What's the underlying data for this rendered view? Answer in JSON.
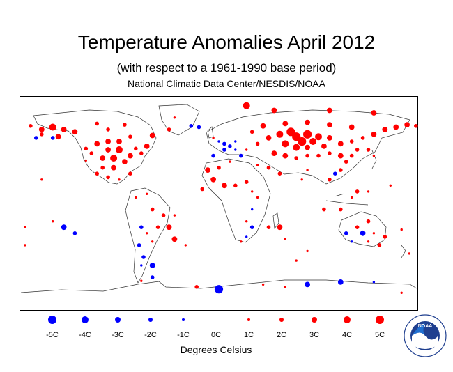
{
  "header": {
    "title": "Temperature Anomalies April 2012",
    "subtitle": "(with respect to a 1961-1990 base period)",
    "source": "National Climatic Data Center/NESDIS/NOAA"
  },
  "legend": {
    "items": [
      {
        "label": "-5C",
        "value": -5
      },
      {
        "label": "-4C",
        "value": -4
      },
      {
        "label": "-3C",
        "value": -3
      },
      {
        "label": "-2C",
        "value": -2
      },
      {
        "label": "-1C",
        "value": -1
      },
      {
        "label": "0C",
        "value": 0
      },
      {
        "label": "1C",
        "value": 1
      },
      {
        "label": "2C",
        "value": 2
      },
      {
        "label": "3C",
        "value": 3
      },
      {
        "label": "4C",
        "value": 4
      },
      {
        "label": "5C",
        "value": 5
      }
    ],
    "units": "Degrees Celsius",
    "warm_color": "#ff0000",
    "cold_color": "#0000ff"
  },
  "logo": {
    "text": "NOAA",
    "ring_text": "NATIONAL OCEANIC AND ATMOSPHERIC ADMINISTRATION · U.S. DEPARTMENT OF COMMERCE"
  },
  "map_data": {
    "projection": "equirectangular",
    "lon_range": [
      -180,
      180
    ],
    "lat_range": [
      -90,
      90
    ],
    "anomalies": [
      {
        "lon": 25,
        "lat": 82,
        "value": 4
      },
      {
        "lon": 50,
        "lat": 78,
        "value": 3
      },
      {
        "lon": 100,
        "lat": 78,
        "value": 3
      },
      {
        "lon": 140,
        "lat": 76,
        "value": 3
      },
      {
        "lon": -170,
        "lat": 65,
        "value": 2
      },
      {
        "lon": -160,
        "lat": 62,
        "value": 3
      },
      {
        "lon": -150,
        "lat": 64,
        "value": 4
      },
      {
        "lon": -140,
        "lat": 62,
        "value": 3
      },
      {
        "lon": -130,
        "lat": 60,
        "value": 3
      },
      {
        "lon": -160,
        "lat": 58,
        "value": 2
      },
      {
        "lon": -145,
        "lat": 56,
        "value": 3
      },
      {
        "lon": -165,
        "lat": 55,
        "value": -2
      },
      {
        "lon": -150,
        "lat": 55,
        "value": -2
      },
      {
        "lon": -110,
        "lat": 67,
        "value": 2
      },
      {
        "lon": -100,
        "lat": 62,
        "value": 2
      },
      {
        "lon": -85,
        "lat": 66,
        "value": 2
      },
      {
        "lon": -80,
        "lat": 56,
        "value": 2
      },
      {
        "lon": -60,
        "lat": 57,
        "value": 3
      },
      {
        "lon": -45,
        "lat": 62,
        "value": 2
      },
      {
        "lon": -25,
        "lat": 65,
        "value": -2
      },
      {
        "lon": -18,
        "lat": 64,
        "value": -2
      },
      {
        "lon": -40,
        "lat": 72,
        "value": 1
      },
      {
        "lon": -65,
        "lat": 48,
        "value": 3
      },
      {
        "lon": -75,
        "lat": 46,
        "value": 2
      },
      {
        "lon": -70,
        "lat": 42,
        "value": 2
      },
      {
        "lon": -80,
        "lat": 40,
        "value": 3
      },
      {
        "lon": -90,
        "lat": 45,
        "value": 4
      },
      {
        "lon": -100,
        "lat": 45,
        "value": 3
      },
      {
        "lon": -95,
        "lat": 38,
        "value": 4
      },
      {
        "lon": -105,
        "lat": 38,
        "value": 3
      },
      {
        "lon": -115,
        "lat": 42,
        "value": 2
      },
      {
        "lon": -120,
        "lat": 46,
        "value": 2
      },
      {
        "lon": -110,
        "lat": 50,
        "value": 3
      },
      {
        "lon": -100,
        "lat": 52,
        "value": 3
      },
      {
        "lon": -90,
        "lat": 52,
        "value": 3
      },
      {
        "lon": -85,
        "lat": 35,
        "value": 3
      },
      {
        "lon": -95,
        "lat": 30,
        "value": 3
      },
      {
        "lon": -105,
        "lat": 30,
        "value": 2
      },
      {
        "lon": -110,
        "lat": 25,
        "value": 2
      },
      {
        "lon": -100,
        "lat": 22,
        "value": 2
      },
      {
        "lon": -90,
        "lat": 20,
        "value": 1
      },
      {
        "lon": -80,
        "lat": 25,
        "value": 2
      },
      {
        "lon": -120,
        "lat": 36,
        "value": 1
      },
      {
        "lon": -75,
        "lat": 5,
        "value": 1
      },
      {
        "lon": -65,
        "lat": 8,
        "value": 1
      },
      {
        "lon": -60,
        "lat": -5,
        "value": 2
      },
      {
        "lon": -50,
        "lat": -10,
        "value": 2
      },
      {
        "lon": -55,
        "lat": -20,
        "value": 2
      },
      {
        "lon": -45,
        "lat": -20,
        "value": 3
      },
      {
        "lon": -40,
        "lat": -10,
        "value": 1
      },
      {
        "lon": -65,
        "lat": -25,
        "value": 1
      },
      {
        "lon": -60,
        "lat": -32,
        "value": 1
      },
      {
        "lon": -70,
        "lat": -20,
        "value": -2
      },
      {
        "lon": -72,
        "lat": -35,
        "value": -2
      },
      {
        "lon": -68,
        "lat": -45,
        "value": -2
      },
      {
        "lon": -70,
        "lat": -52,
        "value": -1
      },
      {
        "lon": -60,
        "lat": -52,
        "value": -3
      },
      {
        "lon": -40,
        "lat": -30,
        "value": 3
      },
      {
        "lon": -30,
        "lat": -35,
        "value": 1
      },
      {
        "lon": -140,
        "lat": -20,
        "value": -3
      },
      {
        "lon": -130,
        "lat": -25,
        "value": -2
      },
      {
        "lon": -150,
        "lat": -15,
        "value": 1
      },
      {
        "lon": -175,
        "lat": -20,
        "value": 1
      },
      {
        "lon": -175,
        "lat": -35,
        "value": 1
      },
      {
        "lon": -160,
        "lat": 20,
        "value": 1
      },
      {
        "lon": -5,
        "lat": 55,
        "value": 1
      },
      {
        "lon": 0,
        "lat": 52,
        "value": -1
      },
      {
        "lon": 5,
        "lat": 50,
        "value": -2
      },
      {
        "lon": 10,
        "lat": 48,
        "value": -2
      },
      {
        "lon": 15,
        "lat": 52,
        "value": -1
      },
      {
        "lon": -5,
        "lat": 40,
        "value": -2
      },
      {
        "lon": 5,
        "lat": 45,
        "value": -2
      },
      {
        "lon": 15,
        "lat": 45,
        "value": -1
      },
      {
        "lon": 20,
        "lat": 40,
        "value": -2
      },
      {
        "lon": 25,
        "lat": 45,
        "value": 1
      },
      {
        "lon": 35,
        "lat": 50,
        "value": 2
      },
      {
        "lon": 45,
        "lat": 55,
        "value": 3
      },
      {
        "lon": 55,
        "lat": 58,
        "value": 4
      },
      {
        "lon": 65,
        "lat": 60,
        "value": 5
      },
      {
        "lon": 70,
        "lat": 56,
        "value": 5
      },
      {
        "lon": 80,
        "lat": 58,
        "value": 5
      },
      {
        "lon": 75,
        "lat": 52,
        "value": 5
      },
      {
        "lon": 85,
        "lat": 52,
        "value": 4
      },
      {
        "lon": 90,
        "lat": 56,
        "value": 4
      },
      {
        "lon": 100,
        "lat": 55,
        "value": 3
      },
      {
        "lon": 60,
        "lat": 50,
        "value": 4
      },
      {
        "lon": 70,
        "lat": 47,
        "value": 4
      },
      {
        "lon": 80,
        "lat": 47,
        "value": 3
      },
      {
        "lon": 95,
        "lat": 48,
        "value": 3
      },
      {
        "lon": 110,
        "lat": 50,
        "value": 3
      },
      {
        "lon": 120,
        "lat": 52,
        "value": 2
      },
      {
        "lon": 130,
        "lat": 55,
        "value": 2
      },
      {
        "lon": 140,
        "lat": 58,
        "value": 3
      },
      {
        "lon": 150,
        "lat": 62,
        "value": 3
      },
      {
        "lon": 160,
        "lat": 64,
        "value": 3
      },
      {
        "lon": 170,
        "lat": 66,
        "value": 3
      },
      {
        "lon": 178,
        "lat": 65,
        "value": 2
      },
      {
        "lon": 120,
        "lat": 64,
        "value": 3
      },
      {
        "lon": 100,
        "lat": 66,
        "value": 3
      },
      {
        "lon": 80,
        "lat": 68,
        "value": 3
      },
      {
        "lon": 60,
        "lat": 67,
        "value": 3
      },
      {
        "lon": 40,
        "lat": 65,
        "value": 3
      },
      {
        "lon": 30,
        "lat": 60,
        "value": 2
      },
      {
        "lon": 50,
        "lat": 42,
        "value": 3
      },
      {
        "lon": 60,
        "lat": 40,
        "value": 3
      },
      {
        "lon": 70,
        "lat": 38,
        "value": 2
      },
      {
        "lon": 80,
        "lat": 40,
        "value": 2
      },
      {
        "lon": 90,
        "lat": 40,
        "value": 2
      },
      {
        "lon": 100,
        "lat": 42,
        "value": 2
      },
      {
        "lon": 110,
        "lat": 40,
        "value": 3
      },
      {
        "lon": 115,
        "lat": 35,
        "value": 2
      },
      {
        "lon": 120,
        "lat": 40,
        "value": 2
      },
      {
        "lon": 125,
        "lat": 45,
        "value": 2
      },
      {
        "lon": 135,
        "lat": 45,
        "value": 2
      },
      {
        "lon": 140,
        "lat": 40,
        "value": 1
      },
      {
        "lon": 110,
        "lat": 28,
        "value": 2
      },
      {
        "lon": 105,
        "lat": 25,
        "value": -2
      },
      {
        "lon": 100,
        "lat": 20,
        "value": 2
      },
      {
        "lon": 80,
        "lat": 28,
        "value": 1
      },
      {
        "lon": 75,
        "lat": 20,
        "value": 1
      },
      {
        "lon": 45,
        "lat": 30,
        "value": 2
      },
      {
        "lon": 55,
        "lat": 25,
        "value": 2
      },
      {
        "lon": 35,
        "lat": 32,
        "value": 1
      },
      {
        "lon": 10,
        "lat": 35,
        "value": 1
      },
      {
        "lon": 0,
        "lat": 30,
        "value": 2
      },
      {
        "lon": -10,
        "lat": 28,
        "value": 3
      },
      {
        "lon": -5,
        "lat": 20,
        "value": 3
      },
      {
        "lon": 5,
        "lat": 15,
        "value": 3
      },
      {
        "lon": 15,
        "lat": 15,
        "value": 2
      },
      {
        "lon": 25,
        "lat": 18,
        "value": 2
      },
      {
        "lon": 30,
        "lat": 10,
        "value": 1
      },
      {
        "lon": -15,
        "lat": 12,
        "value": 2
      },
      {
        "lon": 35,
        "lat": 5,
        "value": 1
      },
      {
        "lon": 30,
        "lat": -5,
        "value": -1
      },
      {
        "lon": 25,
        "lat": -15,
        "value": 1
      },
      {
        "lon": 30,
        "lat": -20,
        "value": -2
      },
      {
        "lon": 25,
        "lat": -28,
        "value": -1
      },
      {
        "lon": 20,
        "lat": -32,
        "value": 1
      },
      {
        "lon": 45,
        "lat": -20,
        "value": 2
      },
      {
        "lon": 55,
        "lat": -20,
        "value": 3
      },
      {
        "lon": 60,
        "lat": -30,
        "value": 1
      },
      {
        "lon": 70,
        "lat": -48,
        "value": 1
      },
      {
        "lon": 80,
        "lat": -40,
        "value": 1
      },
      {
        "lon": 95,
        "lat": -5,
        "value": 2
      },
      {
        "lon": 110,
        "lat": -5,
        "value": 2
      },
      {
        "lon": 120,
        "lat": 5,
        "value": 1
      },
      {
        "lon": 125,
        "lat": 10,
        "value": 2
      },
      {
        "lon": 115,
        "lat": -25,
        "value": -2
      },
      {
        "lon": 125,
        "lat": -20,
        "value": 2
      },
      {
        "lon": 135,
        "lat": -15,
        "value": 2
      },
      {
        "lon": 140,
        "lat": -25,
        "value": 1
      },
      {
        "lon": 150,
        "lat": -28,
        "value": 2
      },
      {
        "lon": 145,
        "lat": -35,
        "value": 2
      },
      {
        "lon": 135,
        "lat": -32,
        "value": 1
      },
      {
        "lon": 120,
        "lat": -32,
        "value": -1
      },
      {
        "lon": 130,
        "lat": -25,
        "value": -3
      },
      {
        "lon": 165,
        "lat": -22,
        "value": 1
      },
      {
        "lon": 172,
        "lat": -42,
        "value": 1
      },
      {
        "lon": 155,
        "lat": 15,
        "value": 1
      },
      {
        "lon": 135,
        "lat": 10,
        "value": 1
      },
      {
        "lon": -60,
        "lat": -62,
        "value": -2
      },
      {
        "lon": -70,
        "lat": -65,
        "value": 1
      },
      {
        "lon": -20,
        "lat": -70,
        "value": 2
      },
      {
        "lon": 0,
        "lat": -72,
        "value": -5
      },
      {
        "lon": 40,
        "lat": -68,
        "value": 1
      },
      {
        "lon": 60,
        "lat": -70,
        "value": 1
      },
      {
        "lon": 80,
        "lat": -68,
        "value": -3
      },
      {
        "lon": 110,
        "lat": -66,
        "value": -3
      },
      {
        "lon": 140,
        "lat": -66,
        "value": -1
      },
      {
        "lon": 165,
        "lat": -75,
        "value": 1
      }
    ]
  }
}
